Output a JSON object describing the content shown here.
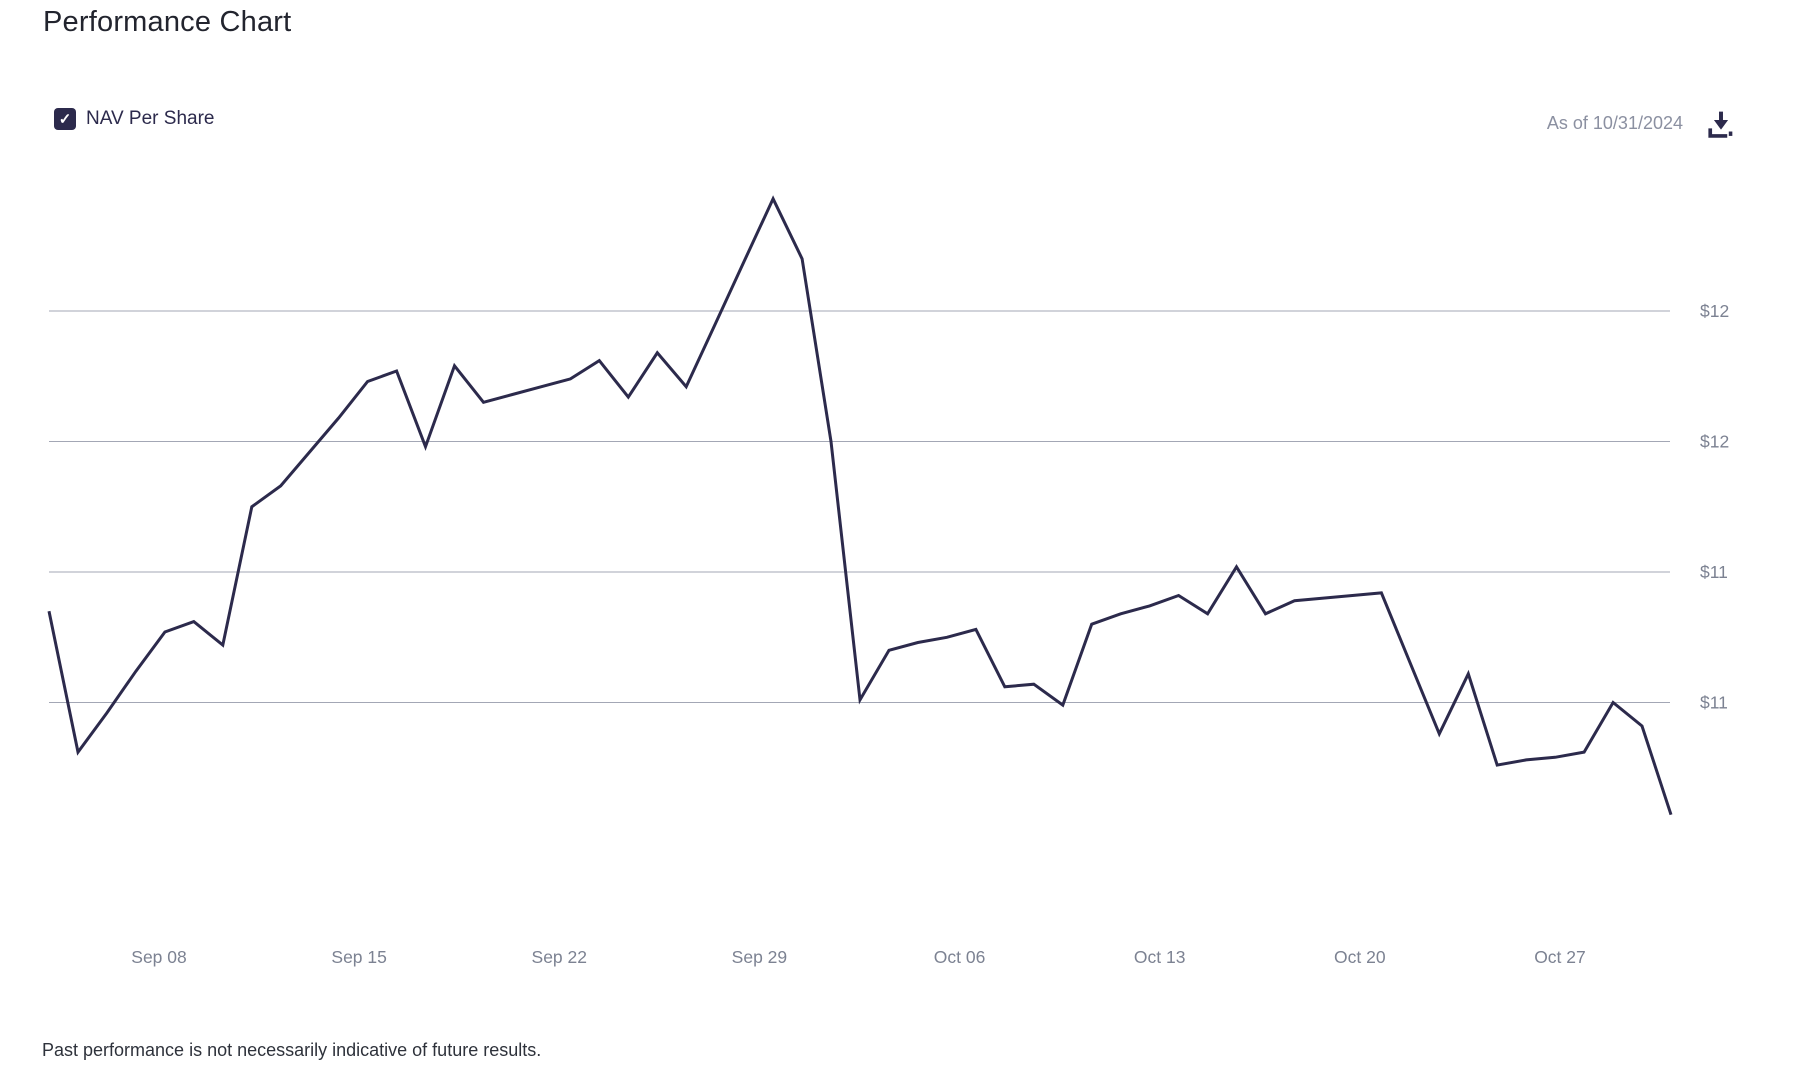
{
  "page": {
    "title": "Performance Chart",
    "as_of": "As of 10/31/2024",
    "footer": "Past performance is not necessarily indicative of future results."
  },
  "legend": {
    "nav_label": "NAV Per Share",
    "checked": true
  },
  "icons": {
    "checkbox_check_icon": "✓",
    "download_icon": "down-arrow-into-tray"
  },
  "colors": {
    "line": "#2c2a4c",
    "checkbox": "#2c2a4c",
    "grid": "#a3a7b5",
    "axis_text": "#7c8292",
    "muted_text": "#8b90a1",
    "title_text": "#22242e",
    "footer_text": "#2e323b"
  },
  "chart_data": {
    "type": "line",
    "title": "Performance Chart",
    "x_tick_labels": [
      "Sep 08",
      "Sep 15",
      "Sep 22",
      "Sep 29",
      "Oct 06",
      "Oct 13",
      "Oct 20",
      "Oct 27"
    ],
    "y_gridlines": [
      {
        "value": 12.0,
        "label": "$12"
      },
      {
        "value": 11.5,
        "label": "$12"
      },
      {
        "value": 11.0,
        "label": "$11"
      },
      {
        "value": 10.5,
        "label": "$11"
      }
    ],
    "ylim": [
      9.9,
      12.6
    ],
    "y_axis_side": "right",
    "grid": "horizontal-only",
    "legend_position": "top-left",
    "series": [
      {
        "name": "NAV Per Share",
        "values": [
          10.85,
          10.31,
          10.46,
          10.62,
          10.77,
          10.81,
          10.72,
          11.25,
          11.33,
          11.46,
          11.59,
          11.73,
          11.77,
          11.48,
          11.79,
          11.65,
          11.68,
          11.71,
          11.74,
          11.81,
          11.67,
          11.84,
          11.71,
          11.95,
          12.19,
          12.43,
          12.2,
          11.5,
          10.51,
          10.7,
          10.73,
          10.75,
          10.78,
          10.56,
          10.57,
          10.49,
          10.8,
          10.84,
          10.87,
          10.91,
          10.84,
          11.02,
          10.84,
          10.89,
          10.9,
          10.91,
          10.92,
          10.65,
          10.38,
          10.61,
          10.26,
          10.28,
          10.29,
          10.31,
          10.5,
          10.41,
          10.07
        ]
      }
    ]
  }
}
